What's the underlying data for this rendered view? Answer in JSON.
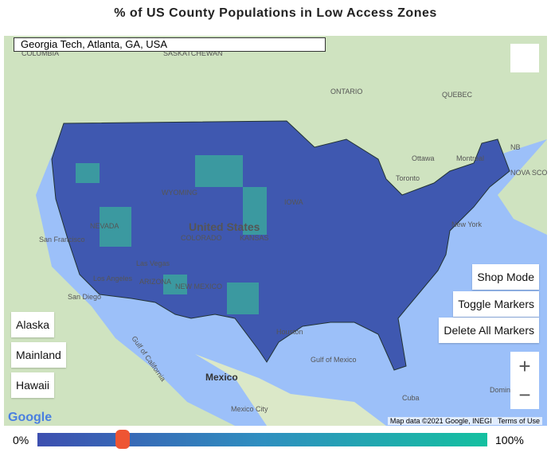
{
  "title": "% of US County Populations in Low Access Zones",
  "search": {
    "value": "Georgia Tech, Atlanta, GA, USA"
  },
  "controls": {
    "shop_mode": "Shop Mode",
    "toggle_markers": "Toggle Markers",
    "delete_markers": "Delete All Markers"
  },
  "regions": {
    "alaska": "Alaska",
    "mainland": "Mainland",
    "hawaii": "Hawaii"
  },
  "zoom": {
    "in": "+",
    "out": "−"
  },
  "map_labels": [
    "COLUMBIA",
    "SASKATCHEWAN",
    "ONTARIO",
    "QUEBEC",
    "Ottawa",
    "Montreal",
    "NB",
    "NOVA SCO",
    "Toronto",
    "New York",
    "United States",
    "COLORADO",
    "KANSAS",
    "IOWA",
    "NEVADA",
    "WYOMING",
    "San Francisco",
    "Las Vegas",
    "Los Angeles",
    "San Diego",
    "ARIZONA",
    "NEW MEXICO",
    "Houston",
    "Gulf of California",
    "Mexico",
    "Gulf of Mexico",
    "Cuba",
    "Mexico City",
    "Dominican"
  ],
  "attribution": {
    "logo": "Google",
    "data": "Map data ©2021 Google, INEGI",
    "terms": "Terms of Use"
  },
  "slider": {
    "min_label": "0%",
    "max_label": "100%",
    "min": 0,
    "max": 100,
    "value": 19
  }
}
